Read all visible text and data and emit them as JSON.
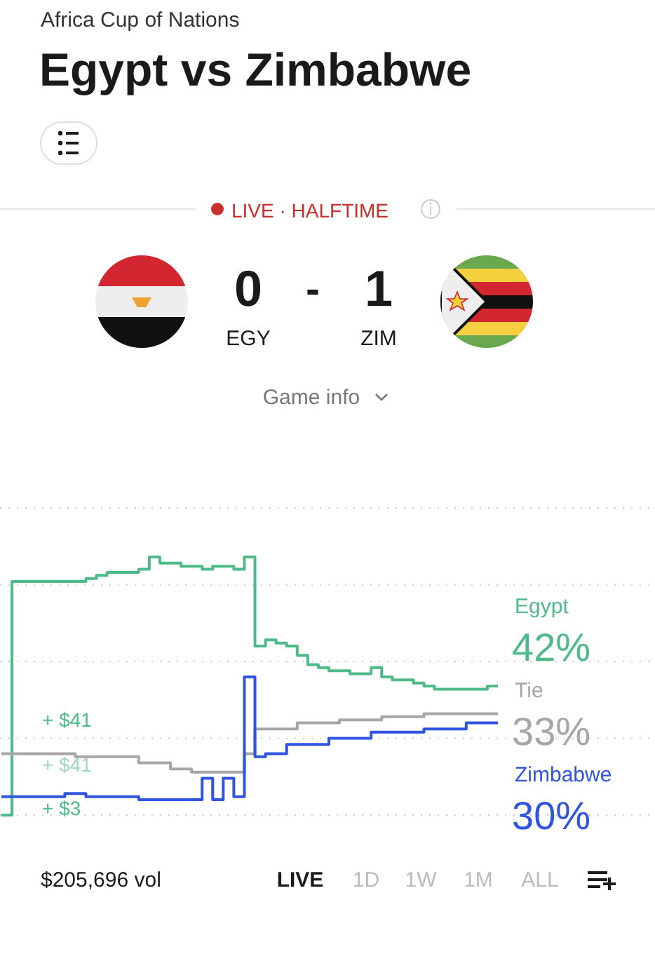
{
  "chart_data": {
    "type": "step",
    "title": "Egypt vs Zimbabwe",
    "subtitle": "Africa Cup of Nations",
    "categories": [
      null,
      null,
      null,
      null,
      null,
      null,
      null,
      null,
      null,
      null,
      null,
      null,
      null,
      null,
      null,
      null,
      null,
      null,
      null,
      null,
      null,
      null,
      null,
      null,
      null,
      null,
      null,
      null,
      null,
      null,
      null,
      null,
      null,
      null,
      null,
      null,
      null,
      null,
      null,
      null,
      null,
      null,
      null,
      null,
      null,
      null,
      null,
      null
    ],
    "series": [
      {
        "name": "Egypt",
        "color": "#4dba87",
        "values": [
          0,
          76,
          76,
          76,
          76,
          76,
          76,
          76,
          77,
          78,
          79,
          79,
          79,
          80,
          84,
          82,
          82,
          81,
          81,
          80,
          81,
          81,
          80,
          84,
          55,
          57,
          56,
          55,
          52,
          49,
          48,
          47,
          47,
          46,
          46,
          48,
          45,
          44,
          44,
          43,
          42,
          41,
          41,
          41,
          41,
          41,
          42,
          42
        ],
        "value_labels": [
          null,
          null,
          null,
          null,
          null,
          null,
          null,
          null,
          null,
          null,
          null,
          null,
          null,
          null,
          null,
          null,
          null,
          null,
          null,
          null,
          null,
          null,
          null,
          null,
          null,
          null,
          null,
          null,
          null,
          null,
          null,
          null,
          null,
          null,
          null,
          null,
          null,
          null,
          null,
          null,
          null,
          null,
          null,
          null,
          null,
          null,
          null,
          "42%"
        ]
      },
      {
        "name": "Tie",
        "color": "#a6a6a6",
        "values": [
          20,
          20,
          20,
          20,
          20,
          20,
          20,
          19,
          19,
          19,
          19,
          19,
          19,
          17,
          17,
          17,
          15,
          15,
          14,
          14,
          14,
          14,
          14,
          20,
          28,
          28,
          28,
          28,
          30,
          30,
          30,
          30,
          31,
          31,
          31,
          31,
          32,
          32,
          32,
          32,
          33,
          33,
          33,
          33,
          33,
          33,
          33,
          33
        ],
        "value_labels": [
          null,
          null,
          null,
          null,
          null,
          null,
          null,
          null,
          null,
          null,
          null,
          null,
          null,
          null,
          null,
          null,
          null,
          null,
          null,
          null,
          null,
          null,
          null,
          null,
          null,
          null,
          null,
          null,
          null,
          null,
          null,
          null,
          null,
          null,
          null,
          null,
          null,
          null,
          null,
          null,
          null,
          null,
          null,
          null,
          null,
          null,
          null,
          "33%"
        ]
      },
      {
        "name": "Zimbabwe",
        "color": "#2f55e0",
        "values": [
          6,
          6,
          6,
          6,
          6,
          6,
          7,
          7,
          6,
          6,
          6,
          6,
          6,
          5,
          5,
          5,
          5,
          5,
          5,
          12,
          5,
          12,
          6,
          45,
          19,
          20,
          20,
          23,
          23,
          23,
          23,
          25,
          25,
          25,
          25,
          27,
          27,
          27,
          27,
          27,
          28,
          28,
          28,
          28,
          30,
          30,
          30,
          30
        ],
        "value_labels": [
          null,
          null,
          null,
          null,
          null,
          null,
          null,
          null,
          null,
          null,
          null,
          null,
          null,
          null,
          null,
          null,
          null,
          null,
          null,
          null,
          null,
          null,
          null,
          null,
          null,
          null,
          null,
          null,
          null,
          null,
          null,
          null,
          null,
          null,
          null,
          null,
          null,
          null,
          null,
          null,
          null,
          null,
          null,
          null,
          null,
          null,
          null,
          "30%"
        ]
      }
    ],
    "ylim": [
      0,
      100
    ],
    "yticks": [
      {
        "value": 0,
        "label": null
      },
      {
        "value": 25,
        "label": null
      },
      {
        "value": 50,
        "label": null
      },
      {
        "value": 75,
        "label": null
      },
      {
        "value": 100,
        "label": null
      }
    ],
    "grid": "y",
    "line_style": "solid",
    "marker": "none",
    "legend": "right",
    "annotations": [
      "LIVE · HALFTIME",
      "0",
      "-",
      "1",
      "EGY",
      "ZIM",
      "Game info",
      "+ $41",
      "+ $41",
      "+ $3",
      "$205,696 vol",
      "LIVE",
      "1D",
      "1W",
      "1M",
      "ALL"
    ]
  }
}
